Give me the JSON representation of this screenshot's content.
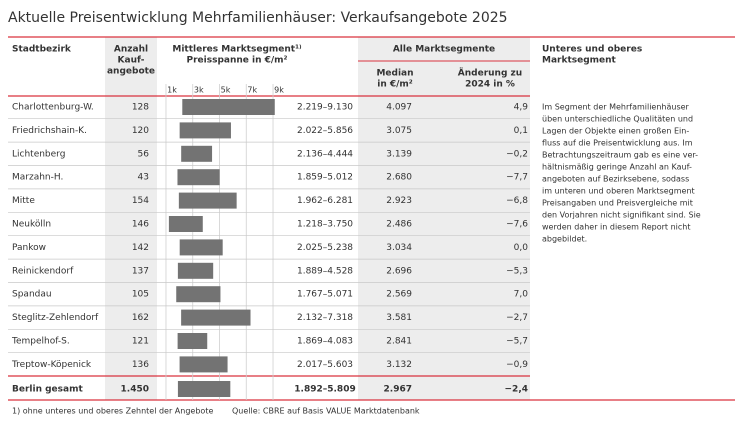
{
  "title": "Aktuelle Preisentwicklung Mehrfamilienhäuser: Verkaufsangebote 2025",
  "headers": {
    "district": "Stadtbezirk",
    "count": [
      "Anzahl",
      "Kauf-",
      "angebote"
    ],
    "mid": [
      "Mittleres Marktsegment¹⁾",
      "Preisspanne in €/m²"
    ],
    "all": "Alle Marktsegmente",
    "median": [
      "Median",
      "in €/m²"
    ],
    "change": [
      "Änderung zu",
      "2024 in %"
    ],
    "note": [
      "Unteres und oberes",
      "Marktsegment"
    ]
  },
  "axis": {
    "xlim": [
      0,
      10000
    ],
    "xticks": [
      {
        "value": 1000,
        "label": "1k"
      },
      {
        "value": 3000,
        "label": "3k"
      },
      {
        "value": 5000,
        "label": "5k"
      },
      {
        "value": 7000,
        "label": "7k"
      },
      {
        "value": 9000,
        "label": "9k"
      }
    ]
  },
  "rows": [
    {
      "name": "Charlottenburg-W.",
      "count": "128",
      "range": [
        2219,
        9130
      ],
      "range_label": "2.219–9.130",
      "median": "4.097",
      "change": "4,9"
    },
    {
      "name": "Friedrichshain-K.",
      "count": "120",
      "range": [
        2022,
        5856
      ],
      "range_label": "2.022–5.856",
      "median": "3.075",
      "change": "0,1"
    },
    {
      "name": "Lichtenberg",
      "count": "56",
      "range": [
        2136,
        4444
      ],
      "range_label": "2.136–4.444",
      "median": "3.139",
      "change": "−0,2"
    },
    {
      "name": "Marzahn-H.",
      "count": "43",
      "range": [
        1859,
        5012
      ],
      "range_label": "1.859–5.012",
      "median": "2.680",
      "change": "−7,7"
    },
    {
      "name": "Mitte",
      "count": "154",
      "range": [
        1962,
        6281
      ],
      "range_label": "1.962–6.281",
      "median": "2.923",
      "change": "−6,8"
    },
    {
      "name": "Neukölln",
      "count": "146",
      "range": [
        1218,
        3750
      ],
      "range_label": "1.218–3.750",
      "median": "2.486",
      "change": "−7,6"
    },
    {
      "name": "Pankow",
      "count": "142",
      "range": [
        2025,
        5238
      ],
      "range_label": "2.025–5.238",
      "median": "3.034",
      "change": "0,0"
    },
    {
      "name": "Reinickendorf",
      "count": "137",
      "range": [
        1889,
        4528
      ],
      "range_label": "1.889–4.528",
      "median": "2.696",
      "change": "−5,3"
    },
    {
      "name": "Spandau",
      "count": "105",
      "range": [
        1767,
        5071
      ],
      "range_label": "1.767–5.071",
      "median": "2.569",
      "change": "7,0"
    },
    {
      "name": "Steglitz-Zehlendorf",
      "count": "162",
      "range": [
        2132,
        7318
      ],
      "range_label": "2.132–7.318",
      "median": "3.581",
      "change": "−2,7"
    },
    {
      "name": "Tempelhof-S.",
      "count": "121",
      "range": [
        1869,
        4083
      ],
      "range_label": "1.869–4.083",
      "median": "2.841",
      "change": "−5,7"
    },
    {
      "name": "Treptow-Köpenick",
      "count": "136",
      "range": [
        2017,
        5603
      ],
      "range_label": "2.017–5.603",
      "median": "3.132",
      "change": "−0,9"
    }
  ],
  "total": {
    "name": "Berlin gesamt",
    "count": "1.450",
    "range": [
      1892,
      5809
    ],
    "range_label": "1.892–5.809",
    "median": "2.967",
    "change": "−2,4"
  },
  "note": [
    "Im Segment der Mehrfamilienhäuser",
    "üben unterschiedliche Qualitäten und",
    "Lagen der Objekte einen großen Ein-",
    "fluss auf die Preisentwicklung aus. Im",
    "Betrachtungszeitraum gab es eine ver-",
    "hältnismäßig geringe Anzahl an Kauf-",
    "angeboten auf Bezirksebene, sodass",
    "im unteren und oberen Marktsegment",
    "Preisangaben und Preisvergleiche mit",
    "den Vorjahren nicht signifikant sind. Sie",
    "werden daher in diesem Report nicht",
    "abgebildet."
  ],
  "footnote": "1) ohne unteres und oberes Zehntel der Angebote",
  "source": "Quelle: CBRE auf Basis VALUE Marktdatenbank"
}
